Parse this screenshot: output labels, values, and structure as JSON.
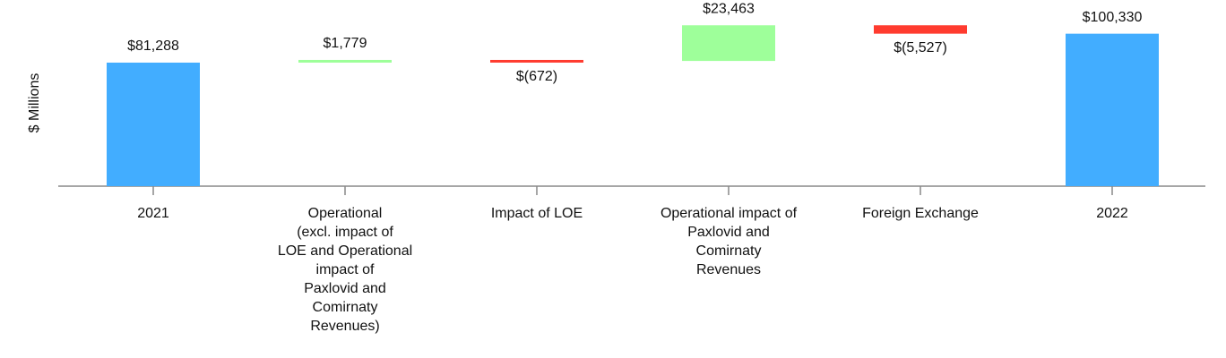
{
  "chart_data": {
    "type": "waterfall",
    "y_axis_label": "$ Millions",
    "categories": [
      "2021",
      "Operational\n(excl. impact of\nLOE and Operational\nimpact of\nPaxlovid and\nComirnaty\nRevenues)",
      "Impact of LOE",
      "Operational impact of\nPaxlovid and\nComirnaty\nRevenues",
      "Foreign Exchange",
      "2022"
    ],
    "values": [
      81288,
      1779,
      -672,
      23463,
      -5527,
      100330
    ],
    "value_labels": [
      "$81,288",
      "$1,779",
      "$(672)",
      "$23,463",
      "$(5,527)",
      "$100,330"
    ],
    "colors": {
      "total": "#42adff",
      "increase": "#9eff9a",
      "decrease": "#ff3b2f"
    },
    "ylim": [
      0,
      122500
    ]
  }
}
